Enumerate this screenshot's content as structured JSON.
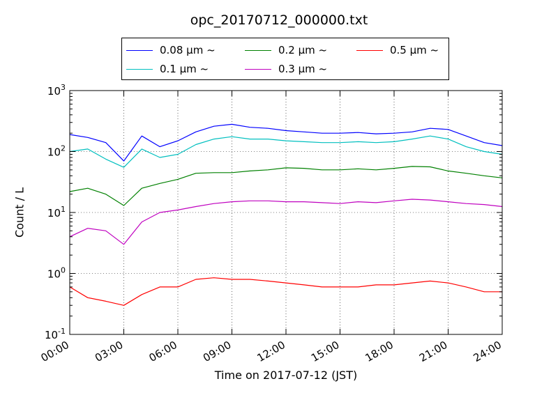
{
  "chart_data": {
    "type": "line",
    "title": "opc_20170712_000000.txt",
    "xlabel": "Time on 2017-07-12 (JST)",
    "ylabel": "Count / L",
    "yscale": "log",
    "xlim": [
      "00:00",
      "24:00"
    ],
    "ylim": [
      0.1,
      1000
    ],
    "grid": true,
    "legend_position": "top-center",
    "x_tick_labels": [
      "00:00",
      "03:00",
      "06:00",
      "09:00",
      "12:00",
      "15:00",
      "18:00",
      "21:00",
      "24:00"
    ],
    "y_tick_labels": [
      {
        "base": "10",
        "exp": "-1"
      },
      {
        "base": "10",
        "exp": "0"
      },
      {
        "base": "10",
        "exp": "1"
      },
      {
        "base": "10",
        "exp": "2"
      },
      {
        "base": "10",
        "exp": "3"
      }
    ],
    "x": [
      "00:00",
      "01:00",
      "02:00",
      "03:00",
      "04:00",
      "05:00",
      "06:00",
      "07:00",
      "08:00",
      "09:00",
      "10:00",
      "11:00",
      "12:00",
      "13:00",
      "14:00",
      "15:00",
      "16:00",
      "17:00",
      "18:00",
      "19:00",
      "20:00",
      "21:00",
      "22:00",
      "23:00",
      "24:00"
    ],
    "series": [
      {
        "name": "0.08 μm ~",
        "color": "#0000ff",
        "values": [
          190,
          170,
          140,
          70,
          180,
          120,
          150,
          210,
          260,
          280,
          250,
          240,
          220,
          210,
          200,
          200,
          205,
          195,
          200,
          210,
          240,
          230,
          180,
          140,
          125
        ]
      },
      {
        "name": "0.1 μm ~",
        "color": "#00bfbf",
        "values": [
          100,
          110,
          75,
          55,
          110,
          80,
          90,
          130,
          160,
          175,
          160,
          160,
          150,
          145,
          140,
          140,
          145,
          140,
          145,
          160,
          180,
          160,
          120,
          100,
          90
        ]
      },
      {
        "name": "0.2 μm ~",
        "color": "#008000",
        "values": [
          22,
          25,
          20,
          13,
          25,
          30,
          35,
          44,
          45,
          45,
          48,
          50,
          54,
          53,
          50,
          50,
          52,
          50,
          53,
          57,
          56,
          48,
          44,
          40,
          37
        ]
      },
      {
        "name": "0.3 μm ~",
        "color": "#bf00bf",
        "values": [
          4.0,
          5.5,
          5.0,
          3.0,
          7.0,
          10.0,
          11.0,
          12.5,
          14.0,
          15.0,
          15.5,
          15.5,
          15.0,
          15.0,
          14.5,
          14.0,
          15.0,
          14.5,
          15.5,
          16.5,
          16.0,
          15.0,
          14.0,
          13.5,
          12.5
        ]
      },
      {
        "name": "0.5 μm ~",
        "color": "#ff0000",
        "values": [
          0.6,
          0.4,
          0.35,
          0.3,
          0.45,
          0.6,
          0.6,
          0.8,
          0.85,
          0.8,
          0.8,
          0.75,
          0.7,
          0.65,
          0.6,
          0.6,
          0.6,
          0.65,
          0.65,
          0.7,
          0.75,
          0.7,
          0.6,
          0.5,
          0.5
        ]
      }
    ]
  }
}
